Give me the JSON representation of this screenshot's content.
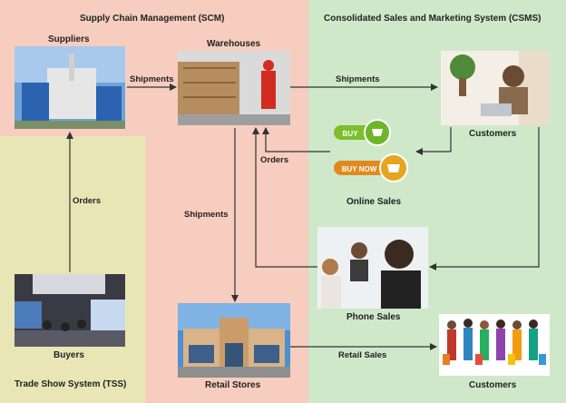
{
  "regions": {
    "scm": "Supply Chain Management (SCM)",
    "csms": "Consolidated Sales and Marketing System (CSMS)",
    "tss": "Trade Show System (TSS)"
  },
  "nodes": {
    "suppliers": "Suppliers",
    "warehouses": "Warehouses",
    "customers_online": "Customers",
    "online_sales": "Online Sales",
    "phone_sales": "Phone Sales",
    "buyers": "Buyers",
    "retail_stores": "Retail Stores",
    "customers_retail": "Customers"
  },
  "buttons": {
    "buy": "BUY",
    "buy_now": "BUY NOW"
  },
  "edges": {
    "suppliers_to_warehouses": "Shipments",
    "warehouses_to_customers": "Shipments",
    "customers_to_warehouses": "Orders",
    "buyers_to_suppliers": "Orders",
    "warehouses_to_retail": "Shipments",
    "retail_to_customers": "Retail Sales"
  },
  "colors": {
    "scm": "#f6cdbf",
    "csms": "#cfe8c9",
    "tss": "#e9e6b6",
    "arrow": "#333333"
  }
}
